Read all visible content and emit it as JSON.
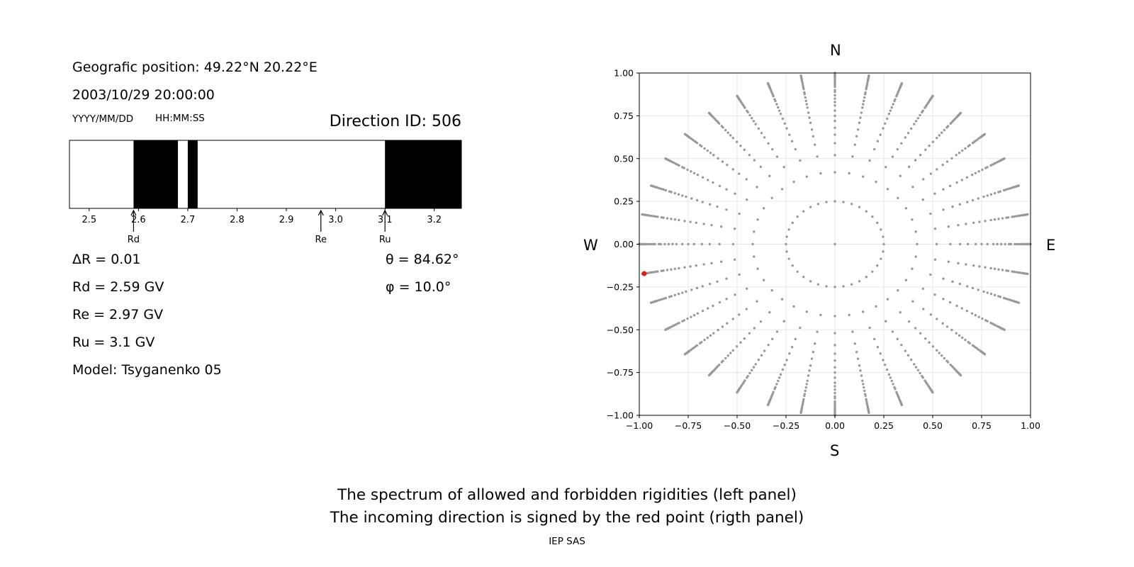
{
  "header": {
    "position": "Geografic position: 49.22°N 20.22°E",
    "datetime": "2003/10/29 20:00:00",
    "date_hint": "YYYY/MM/DD",
    "time_hint": "HH:MM:SS",
    "direction_id": "Direction ID: 506"
  },
  "params": {
    "delta_r": "ΔR = 0.01",
    "rd": "Rd = 2.59 GV",
    "re": "Re = 2.97 GV",
    "ru": "Ru = 3.1 GV",
    "model": "Model: Tsyganenko 05",
    "theta": "θ = 84.62°",
    "phi": "φ = 10.0°"
  },
  "compass": {
    "n": "N",
    "s": "S",
    "w": "W",
    "e": "E"
  },
  "captions": {
    "line1": "The spectrum of allowed and forbidden rigidities (left panel)",
    "line2": "The incoming direction is signed by the red point (rigth panel)",
    "footer": "IEP SAS"
  },
  "chart_data": [
    {
      "type": "bar",
      "kind": "rigidity-spectrum",
      "xlim": [
        2.46,
        3.255
      ],
      "ticks": [
        "2.5",
        "2.6",
        "2.7",
        "2.8",
        "2.9",
        "3.0",
        "3.1",
        "3.2"
      ],
      "tick_values": [
        2.5,
        2.6,
        2.7,
        2.8,
        2.9,
        3.0,
        3.1,
        3.2
      ],
      "forbidden_intervals": [
        [
          2.59,
          2.68
        ],
        [
          2.7,
          2.72
        ],
        [
          3.1,
          3.255
        ]
      ],
      "markers": [
        {
          "label": "Rd",
          "value": 2.59
        },
        {
          "label": "Re",
          "value": 2.97
        },
        {
          "label": "Ru",
          "value": 3.1
        }
      ],
      "colors": {
        "forbidden": "#000000",
        "allowed": "#ffffff"
      }
    },
    {
      "type": "scatter",
      "kind": "direction-grid",
      "xlim": [
        -1,
        1
      ],
      "ylim": [
        -1,
        1
      ],
      "ticks": [
        "−1.00",
        "−0.75",
        "−0.50",
        "−0.25",
        "0.00",
        "0.25",
        "0.50",
        "0.75",
        "1.00"
      ],
      "tick_values": [
        -1,
        -0.75,
        -0.5,
        -0.25,
        0,
        0.25,
        0.5,
        0.75,
        1
      ],
      "grid": true,
      "grid_radii": [
        0.0,
        0.25,
        0.42,
        0.52,
        0.59,
        0.64,
        0.68,
        0.72,
        0.75,
        0.78,
        0.81,
        0.83,
        0.85,
        0.87,
        0.89,
        0.9,
        0.92,
        0.93,
        0.94,
        0.95,
        0.96,
        0.97,
        0.975,
        0.98,
        0.985,
        0.99,
        0.995,
        1.0
      ],
      "grid_azimuth_step_deg": 10,
      "selected_point": {
        "x": -0.975,
        "y": -0.172
      },
      "colors": {
        "grid_point": "#999999",
        "selected": "#e41a1c"
      }
    }
  ]
}
